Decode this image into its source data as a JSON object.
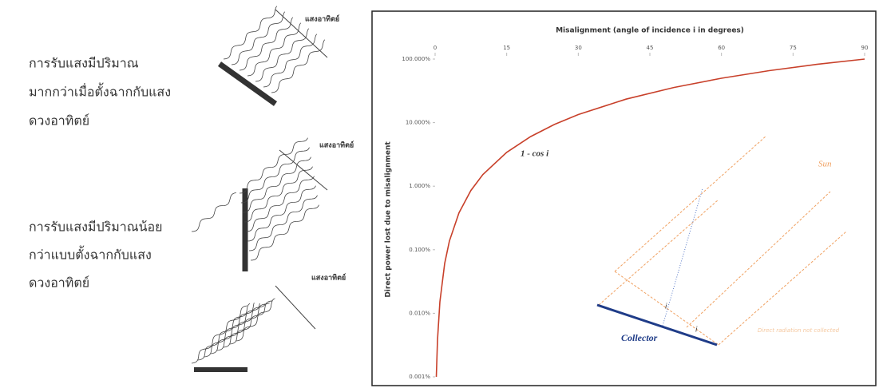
{
  "left_panel": {
    "statements": [
      [
        "การรับแสงมีปริมาณ",
        "มากกว่าเมื่อตั้งฉากกับแสง",
        "ดวงอาทิตย์"
      ],
      [
        "การรับแสงมีปริมาณน้อย",
        "กว่าแบบตั้งฉากกับแสง",
        "ดวงอาทิตย์"
      ]
    ],
    "sun_labels": [
      "แสงอาทิตย์",
      "แสงอาทิตย์",
      "แสงอาทิตย์"
    ]
  },
  "chart_data": {
    "type": "line",
    "x_label": "Misalignment (angle of incidence i in degrees)",
    "y_label": "Direct power lost due to misalignment",
    "curve_label": "1 - cos i",
    "x": [
      0.25,
      0.5,
      1,
      2,
      3,
      5,
      7.5,
      10,
      15,
      20,
      25,
      30,
      40,
      50,
      60,
      70,
      80,
      90
    ],
    "values": [
      0.001,
      0.0038,
      0.0152,
      0.0609,
      0.137,
      0.381,
      0.856,
      1.519,
      3.407,
      6.031,
      9.369,
      13.397,
      23.396,
      35.721,
      50,
      65.798,
      82.635,
      100
    ],
    "color": "#c8402a",
    "xlim": [
      0,
      90
    ],
    "xticks": [
      0,
      15,
      30,
      45,
      60,
      75,
      90
    ],
    "ylim": [
      0.001,
      100
    ],
    "log_y": true,
    "yticks": [
      {
        "value": 0.001,
        "label": "0.001%"
      },
      {
        "value": 0.01,
        "label": "0.010%"
      },
      {
        "value": 0.1,
        "label": "0.100%"
      },
      {
        "value": 1,
        "label": "1.000%"
      },
      {
        "value": 10,
        "label": "10.000%"
      },
      {
        "value": 100,
        "label": "100.000%"
      }
    ],
    "inset": {
      "sun": "Sun",
      "collector": "Collector",
      "angle_labels": [
        "i",
        "i"
      ],
      "note": "Direct radiation not collected"
    }
  }
}
